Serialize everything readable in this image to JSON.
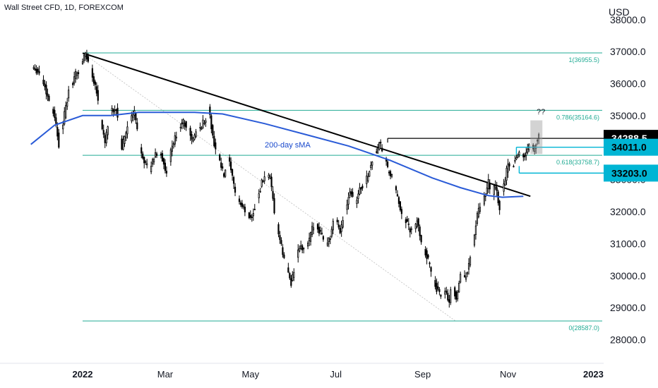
{
  "header": {
    "title": "Wall Street CFD, 1D, FOREXCOM"
  },
  "chart_data": {
    "type": "candlestick",
    "title": "Wall Street CFD, 1D, FOREXCOM",
    "currency": "USD",
    "ylim": [
      27500,
      38400
    ],
    "y_ticks": [
      "37000.0",
      "36000.0",
      "35000.0",
      "33000.0",
      "32000.0",
      "31000.0",
      "30000.0",
      "29000.0",
      "28000.0"
    ],
    "y_ticks_partial": [
      "38000.0"
    ],
    "x_ticks": [
      {
        "label": "2022",
        "day": 0,
        "bold": true
      },
      {
        "label": "Mar",
        "day": 59,
        "bold": false
      },
      {
        "label": "May",
        "day": 120,
        "bold": false
      },
      {
        "label": "Jul",
        "day": 181,
        "bold": false
      },
      {
        "label": "Sep",
        "day": 243,
        "bold": false
      },
      {
        "label": "Nov",
        "day": 304,
        "bold": false
      },
      {
        "label": "2023",
        "day": 365,
        "bold": true
      }
    ],
    "xlim_days": [
      -37,
      378
    ],
    "price_key_points": [
      [
        -37,
        36600
      ],
      [
        -30,
        36300
      ],
      [
        -25,
        35600
      ],
      [
        -20,
        35000
      ],
      [
        -17,
        34100
      ],
      [
        -14,
        34800
      ],
      [
        -10,
        35700
      ],
      [
        -5,
        36300
      ],
      [
        -2,
        36400
      ],
      [
        0,
        36700
      ],
      [
        2,
        36950
      ],
      [
        6,
        36400
      ],
      [
        10,
        35800
      ],
      [
        13,
        34800
      ],
      [
        16,
        34200
      ],
      [
        20,
        35100
      ],
      [
        24,
        35200
      ],
      [
        28,
        34000
      ],
      [
        33,
        34800
      ],
      [
        37,
        35100
      ],
      [
        41,
        34000
      ],
      [
        45,
        33500
      ],
      [
        48,
        33300
      ],
      [
        52,
        33800
      ],
      [
        56,
        33800
      ],
      [
        60,
        33100
      ],
      [
        63,
        33900
      ],
      [
        67,
        34400
      ],
      [
        71,
        34800
      ],
      [
        75,
        34700
      ],
      [
        78,
        34200
      ],
      [
        82,
        34500
      ],
      [
        85,
        34700
      ],
      [
        88,
        34900
      ],
      [
        90,
        35300
      ],
      [
        93,
        34300
      ],
      [
        97,
        33700
      ],
      [
        101,
        33100
      ],
      [
        104,
        33700
      ],
      [
        108,
        32800
      ],
      [
        112,
        32300
      ],
      [
        115,
        32100
      ],
      [
        120,
        31800
      ],
      [
        124,
        32200
      ],
      [
        128,
        32900
      ],
      [
        131,
        33200
      ],
      [
        134,
        33000
      ],
      [
        137,
        32000
      ],
      [
        141,
        31100
      ],
      [
        144,
        30500
      ],
      [
        147,
        30100
      ],
      [
        149,
        29800
      ],
      [
        152,
        30300
      ],
      [
        155,
        30900
      ],
      [
        158,
        30800
      ],
      [
        162,
        31100
      ],
      [
        165,
        31600
      ],
      [
        168,
        31500
      ],
      [
        171,
        31300
      ],
      [
        174,
        31000
      ],
      [
        177,
        31200
      ],
      [
        180,
        31800
      ],
      [
        184,
        31400
      ],
      [
        187,
        31900
      ],
      [
        191,
        32700
      ],
      [
        195,
        32300
      ],
      [
        198,
        32700
      ],
      [
        202,
        32900
      ],
      [
        205,
        33300
      ],
      [
        208,
        33700
      ],
      [
        212,
        34100
      ],
      [
        215,
        33900
      ],
      [
        218,
        33300
      ],
      [
        222,
        33000
      ],
      [
        225,
        32400
      ],
      [
        228,
        32000
      ],
      [
        232,
        31600
      ],
      [
        236,
        31300
      ],
      [
        239,
        31700
      ],
      [
        242,
        31100
      ],
      [
        246,
        30600
      ],
      [
        249,
        30200
      ],
      [
        252,
        29700
      ],
      [
        255,
        29400
      ],
      [
        257,
        29100
      ],
      [
        259,
        29600
      ],
      [
        262,
        29200
      ],
      [
        264,
        29800
      ],
      [
        267,
        29300
      ],
      [
        270,
        30000
      ],
      [
        273,
        29900
      ],
      [
        276,
        30300
      ],
      [
        279,
        31000
      ],
      [
        282,
        31900
      ],
      [
        285,
        32200
      ],
      [
        288,
        32500
      ],
      [
        290,
        32900
      ],
      [
        293,
        32600
      ],
      [
        295,
        32800
      ],
      [
        298,
        32100
      ],
      [
        301,
        32800
      ],
      [
        304,
        33500
      ],
      [
        307,
        33400
      ],
      [
        310,
        33700
      ],
      [
        313,
        33900
      ],
      [
        316,
        33700
      ],
      [
        318,
        34000
      ],
      [
        320,
        34300
      ],
      [
        322,
        33900
      ],
      [
        325,
        34300
      ],
      [
        327,
        34288.5
      ]
    ],
    "moving_average": {
      "name": "200-day sMA",
      "points": [
        [
          -37,
          34100
        ],
        [
          -20,
          34700
        ],
        [
          0,
          35000
        ],
        [
          20,
          35000
        ],
        [
          40,
          35100
        ],
        [
          60,
          35100
        ],
        [
          80,
          35100
        ],
        [
          100,
          35050
        ],
        [
          130,
          34750
        ],
        [
          160,
          34400
        ],
        [
          190,
          34050
        ],
        [
          220,
          33600
        ],
        [
          250,
          33050
        ],
        [
          270,
          32750
        ],
        [
          290,
          32500
        ],
        [
          300,
          32450
        ],
        [
          315,
          32480
        ]
      ]
    },
    "trendline": [
      [
        0,
        36950
      ],
      [
        320,
        32480
      ]
    ],
    "fib_retracement": {
      "levels": [
        {
          "label": "1(36955.5)",
          "value": 36955.5
        },
        {
          "label": "0.786(35164.6)",
          "value": 35164.6
        },
        {
          "label": "0.618(33758.7)",
          "value": 33758.7
        },
        {
          "label": "0(28587.0)",
          "value": 28587.0
        }
      ],
      "start_day": 0
    },
    "horizontal_levels": [
      34288.5,
      34011.0,
      33203.0
    ],
    "annotations": [
      {
        "text": "200-day sMA",
        "color": "#1848cc"
      },
      {
        "text": "??",
        "color": "#131722"
      }
    ],
    "price_tags": [
      {
        "label": "34288.5",
        "value": 34288.5,
        "bg": "#000000",
        "fg": "#ffffff"
      },
      {
        "label": "34011.0",
        "value": 34011.0,
        "bg": "#00b5d4",
        "fg": "#000000"
      },
      {
        "label": "33203.0",
        "value": 33203.0,
        "bg": "#00b5d4",
        "fg": "#000000"
      }
    ],
    "colors": {
      "candle": "#000000",
      "trendline": "#000000",
      "moving_average": "#2a5bd7",
      "fib": "#22ab94",
      "highlight_box": "#9e9e9e",
      "tag_cyan": "#00b5d4"
    }
  }
}
